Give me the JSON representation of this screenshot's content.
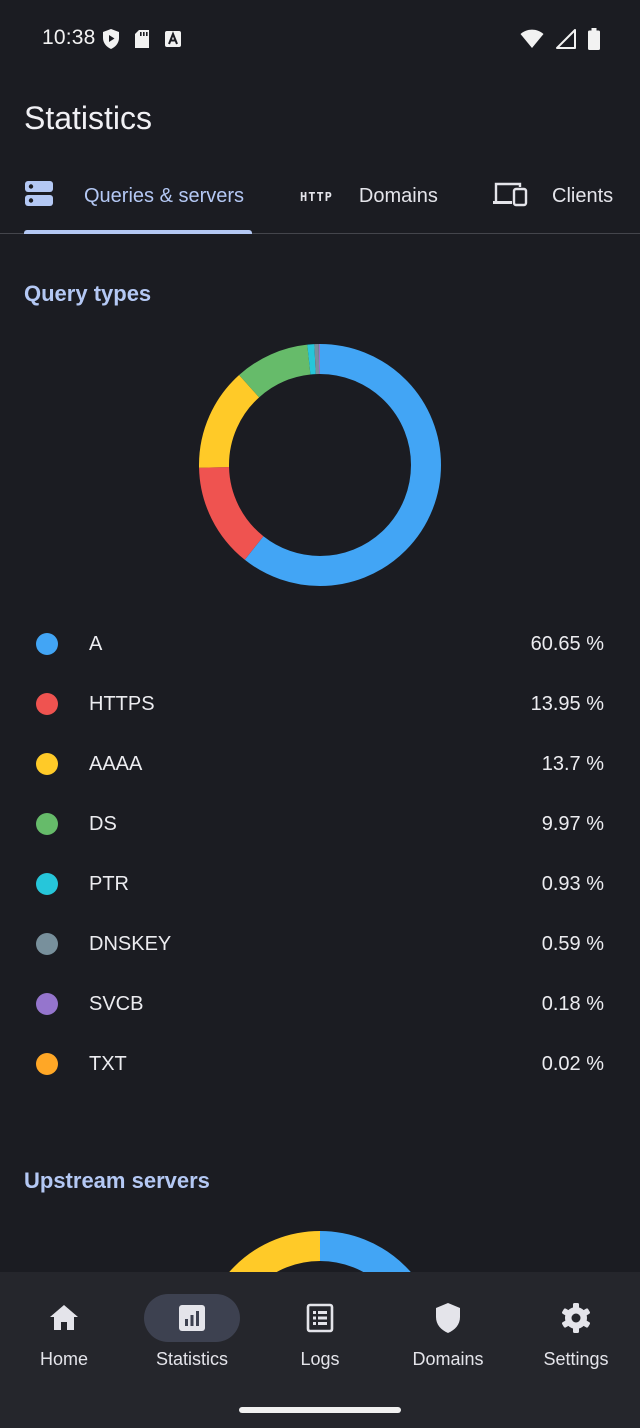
{
  "status_bar": {
    "time": "10:38",
    "icons_left": [
      "shield-play-icon",
      "sd-card-icon",
      "font-a-icon"
    ],
    "icons_right": [
      "wifi-icon",
      "cell-signal-icon",
      "battery-icon"
    ]
  },
  "header": {
    "title": "Statistics"
  },
  "tabs": [
    {
      "label": "Queries & servers",
      "icon": "server-icon",
      "active": true
    },
    {
      "label": "Domains",
      "icon": "http-icon",
      "icon_text": "HTTP",
      "active": false
    },
    {
      "label": "Clients",
      "icon": "devices-icon",
      "active": false
    }
  ],
  "query_types": {
    "title": "Query types",
    "chart_data": {
      "type": "pie",
      "categories": [
        "A",
        "HTTPS",
        "AAAA",
        "DS",
        "PTR",
        "DNSKEY",
        "SVCB",
        "TXT"
      ],
      "values": [
        60.65,
        13.95,
        13.7,
        9.97,
        0.93,
        0.59,
        0.18,
        0.02
      ],
      "colors": [
        "#42a5f5",
        "#ef5350",
        "#ffca28",
        "#66bb6a",
        "#26c6da",
        "#78909c",
        "#9575cd",
        "#ffa726"
      ]
    },
    "legend": [
      {
        "label": "A",
        "value": "60.65 %",
        "color": "#42a5f5"
      },
      {
        "label": "HTTPS",
        "value": "13.95 %",
        "color": "#ef5350"
      },
      {
        "label": "AAAA",
        "value": "13.7 %",
        "color": "#ffca28"
      },
      {
        "label": "DS",
        "value": "9.97 %",
        "color": "#66bb6a"
      },
      {
        "label": "PTR",
        "value": "0.93 %",
        "color": "#26c6da"
      },
      {
        "label": "DNSKEY",
        "value": "0.59 %",
        "color": "#78909c"
      },
      {
        "label": "SVCB",
        "value": "0.18 %",
        "color": "#9575cd"
      },
      {
        "label": "TXT",
        "value": "0.02 %",
        "color": "#ffa726"
      }
    ]
  },
  "upstream_servers": {
    "title": "Upstream servers",
    "chart_data": {
      "type": "pie",
      "values": [
        48,
        2,
        50
      ],
      "colors": [
        "#42a5f5",
        "#ef5350",
        "#ffca28"
      ]
    }
  },
  "bottom_nav": [
    {
      "label": "Home",
      "icon": "home-icon",
      "active": false
    },
    {
      "label": "Statistics",
      "icon": "statistics-icon",
      "active": true
    },
    {
      "label": "Logs",
      "icon": "logs-icon",
      "active": false
    },
    {
      "label": "Domains",
      "icon": "shield-icon",
      "active": false
    },
    {
      "label": "Settings",
      "icon": "gear-icon",
      "active": false
    }
  ]
}
